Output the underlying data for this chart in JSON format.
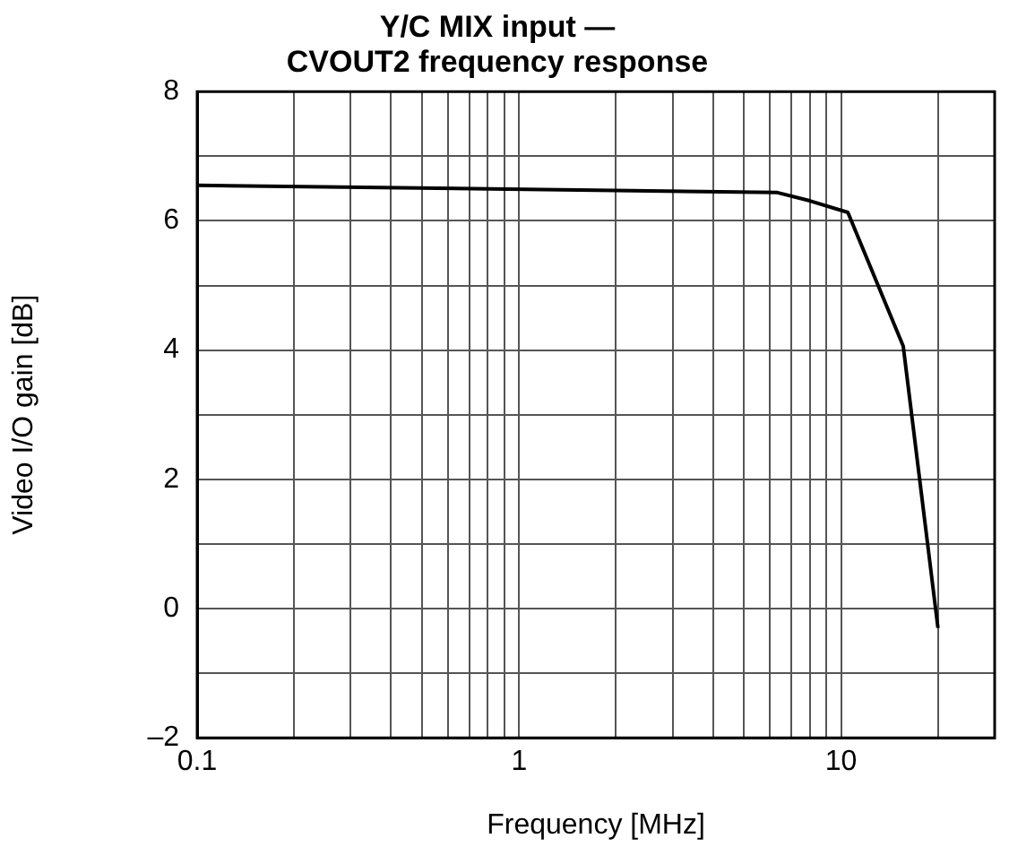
{
  "chart_data": {
    "type": "line",
    "title": "Y/C MIX input —\nCVOUT2 frequency response",
    "xlabel": "Frequency [MHz]",
    "ylabel": "Video I/O gain [dB]",
    "x": [
      0.1,
      6.3,
      8,
      10.5,
      15.6,
      20
    ],
    "series": [
      {
        "color": "#000000",
        "values": [
          6.55,
          6.44,
          6.31,
          6.13,
          4.06,
          -0.3
        ]
      }
    ],
    "log": "x",
    "xlim": [
      0.1,
      30
    ],
    "xticks": [
      0.1,
      {
        "value": 0.2,
        "label": null
      },
      {
        "value": 0.3,
        "label": null
      },
      {
        "value": 0.4,
        "label": null
      },
      {
        "value": 0.5,
        "label": null
      },
      {
        "value": 0.6,
        "label": null
      },
      {
        "value": 0.7,
        "label": null
      },
      {
        "value": 0.8,
        "label": null
      },
      {
        "value": 0.9,
        "label": null
      },
      1,
      {
        "value": 2,
        "label": null
      },
      {
        "value": 3,
        "label": null
      },
      {
        "value": 4,
        "label": null
      },
      {
        "value": 5,
        "label": null
      },
      {
        "value": 6,
        "label": null
      },
      {
        "value": 7,
        "label": null
      },
      {
        "value": 8,
        "label": null
      },
      {
        "value": 9,
        "label": null
      },
      10,
      {
        "value": 20,
        "label": null
      }
    ],
    "ylim": [
      -2,
      8
    ],
    "yticks": [
      {
        "value": -2,
        "label": "–2"
      },
      {
        "value": -1,
        "label": null
      },
      0,
      {
        "value": 1,
        "label": null
      },
      2,
      {
        "value": 3,
        "label": null
      },
      4,
      {
        "value": 5,
        "label": null
      },
      6,
      {
        "value": 7,
        "label": null
      },
      8
    ],
    "grid": true,
    "legend": false,
    "marker": "none",
    "line_style": "solid"
  }
}
